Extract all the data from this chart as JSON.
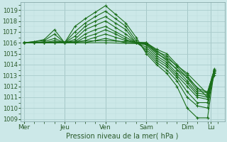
{
  "background_color": "#cce8e8",
  "grid_major_color": "#aacccc",
  "grid_minor_color": "#bbdddd",
  "line_color": "#1a6e1a",
  "ylabel_text": "Pression niveau de la mer( hPa )",
  "x_ticks": [
    0,
    24,
    48,
    72,
    96,
    110,
    116
  ],
  "x_tick_labels": [
    "Mer",
    "Jeu",
    "Ven",
    "Sam",
    "Dim",
    "Lu",
    ""
  ],
  "ylim": [
    1008.8,
    1019.7
  ],
  "xlim": [
    -2,
    118
  ],
  "yticks": [
    1009,
    1010,
    1011,
    1012,
    1013,
    1014,
    1015,
    1016,
    1017,
    1018,
    1019
  ],
  "lines": [
    [
      0,
      1016.0,
      6,
      1016.1,
      12,
      1016.3,
      18,
      1017.2,
      24,
      1016.0,
      30,
      1017.5,
      36,
      1018.2,
      42,
      1018.8,
      48,
      1019.4,
      54,
      1018.6,
      60,
      1017.8,
      66,
      1016.5,
      72,
      1015.0,
      78,
      1014.0,
      84,
      1013.2,
      90,
      1012.0,
      96,
      1010.0,
      102,
      1009.1,
      108,
      1009.1,
      112,
      1013.5
    ],
    [
      0,
      1016.0,
      6,
      1016.1,
      12,
      1016.2,
      18,
      1016.8,
      24,
      1016.0,
      30,
      1017.0,
      36,
      1017.8,
      42,
      1018.4,
      48,
      1018.9,
      54,
      1018.2,
      60,
      1017.5,
      66,
      1016.2,
      72,
      1015.2,
      78,
      1014.2,
      84,
      1013.5,
      90,
      1012.5,
      96,
      1011.0,
      102,
      1010.2,
      108,
      1010.0,
      112,
      1013.5
    ],
    [
      0,
      1016.0,
      6,
      1016.0,
      12,
      1016.1,
      18,
      1016.4,
      24,
      1016.0,
      30,
      1016.6,
      36,
      1017.5,
      42,
      1018.0,
      48,
      1018.4,
      54,
      1017.8,
      60,
      1017.2,
      66,
      1016.0,
      72,
      1015.4,
      78,
      1014.4,
      84,
      1013.8,
      90,
      1012.8,
      96,
      1011.5,
      102,
      1010.5,
      108,
      1010.5,
      112,
      1013.4
    ],
    [
      0,
      1016.0,
      6,
      1016.0,
      12,
      1016.0,
      18,
      1016.2,
      24,
      1016.0,
      30,
      1016.3,
      36,
      1017.2,
      42,
      1017.6,
      48,
      1018.0,
      54,
      1017.4,
      60,
      1016.8,
      66,
      1016.0,
      72,
      1015.6,
      78,
      1014.6,
      84,
      1014.0,
      90,
      1013.0,
      96,
      1012.0,
      102,
      1011.0,
      108,
      1010.8,
      112,
      1013.2
    ],
    [
      0,
      1016.0,
      6,
      1016.0,
      12,
      1016.0,
      18,
      1016.0,
      24,
      1016.0,
      30,
      1016.1,
      36,
      1016.8,
      42,
      1017.2,
      48,
      1017.5,
      54,
      1017.0,
      60,
      1016.5,
      66,
      1016.0,
      72,
      1015.8,
      78,
      1014.8,
      84,
      1014.2,
      90,
      1013.2,
      96,
      1012.3,
      102,
      1011.2,
      108,
      1011.0,
      112,
      1013.4
    ],
    [
      0,
      1016.0,
      6,
      1016.0,
      12,
      1016.0,
      18,
      1016.0,
      24,
      1016.0,
      30,
      1016.0,
      36,
      1016.5,
      42,
      1016.8,
      48,
      1017.2,
      54,
      1016.8,
      60,
      1016.3,
      66,
      1016.0,
      72,
      1015.9,
      78,
      1015.0,
      84,
      1014.5,
      90,
      1013.5,
      96,
      1012.5,
      102,
      1011.4,
      108,
      1011.2,
      112,
      1013.5
    ],
    [
      0,
      1016.0,
      6,
      1016.0,
      12,
      1016.0,
      18,
      1016.0,
      24,
      1016.0,
      30,
      1016.0,
      36,
      1016.2,
      42,
      1016.5,
      48,
      1016.8,
      54,
      1016.5,
      60,
      1016.2,
      66,
      1016.0,
      72,
      1016.0,
      78,
      1015.2,
      84,
      1014.8,
      90,
      1013.8,
      96,
      1012.8,
      102,
      1011.6,
      108,
      1011.4,
      112,
      1013.6
    ],
    [
      0,
      1016.0,
      6,
      1016.0,
      12,
      1016.0,
      18,
      1016.0,
      24,
      1016.0,
      30,
      1016.0,
      36,
      1016.0,
      42,
      1016.2,
      48,
      1016.4,
      54,
      1016.2,
      60,
      1016.0,
      66,
      1016.0,
      72,
      1016.0,
      78,
      1015.4,
      84,
      1015.0,
      90,
      1014.0,
      96,
      1013.0,
      102,
      1011.8,
      108,
      1011.5,
      112,
      1013.5
    ],
    [
      0,
      1016.0,
      48,
      1016.2,
      72,
      1016.0,
      96,
      1013.2,
      108,
      1011.3,
      112,
      1013.3
    ],
    [
      0,
      1016.0,
      48,
      1016.0,
      72,
      1015.9,
      96,
      1012.8,
      108,
      1011.0,
      112,
      1013.0
    ]
  ]
}
